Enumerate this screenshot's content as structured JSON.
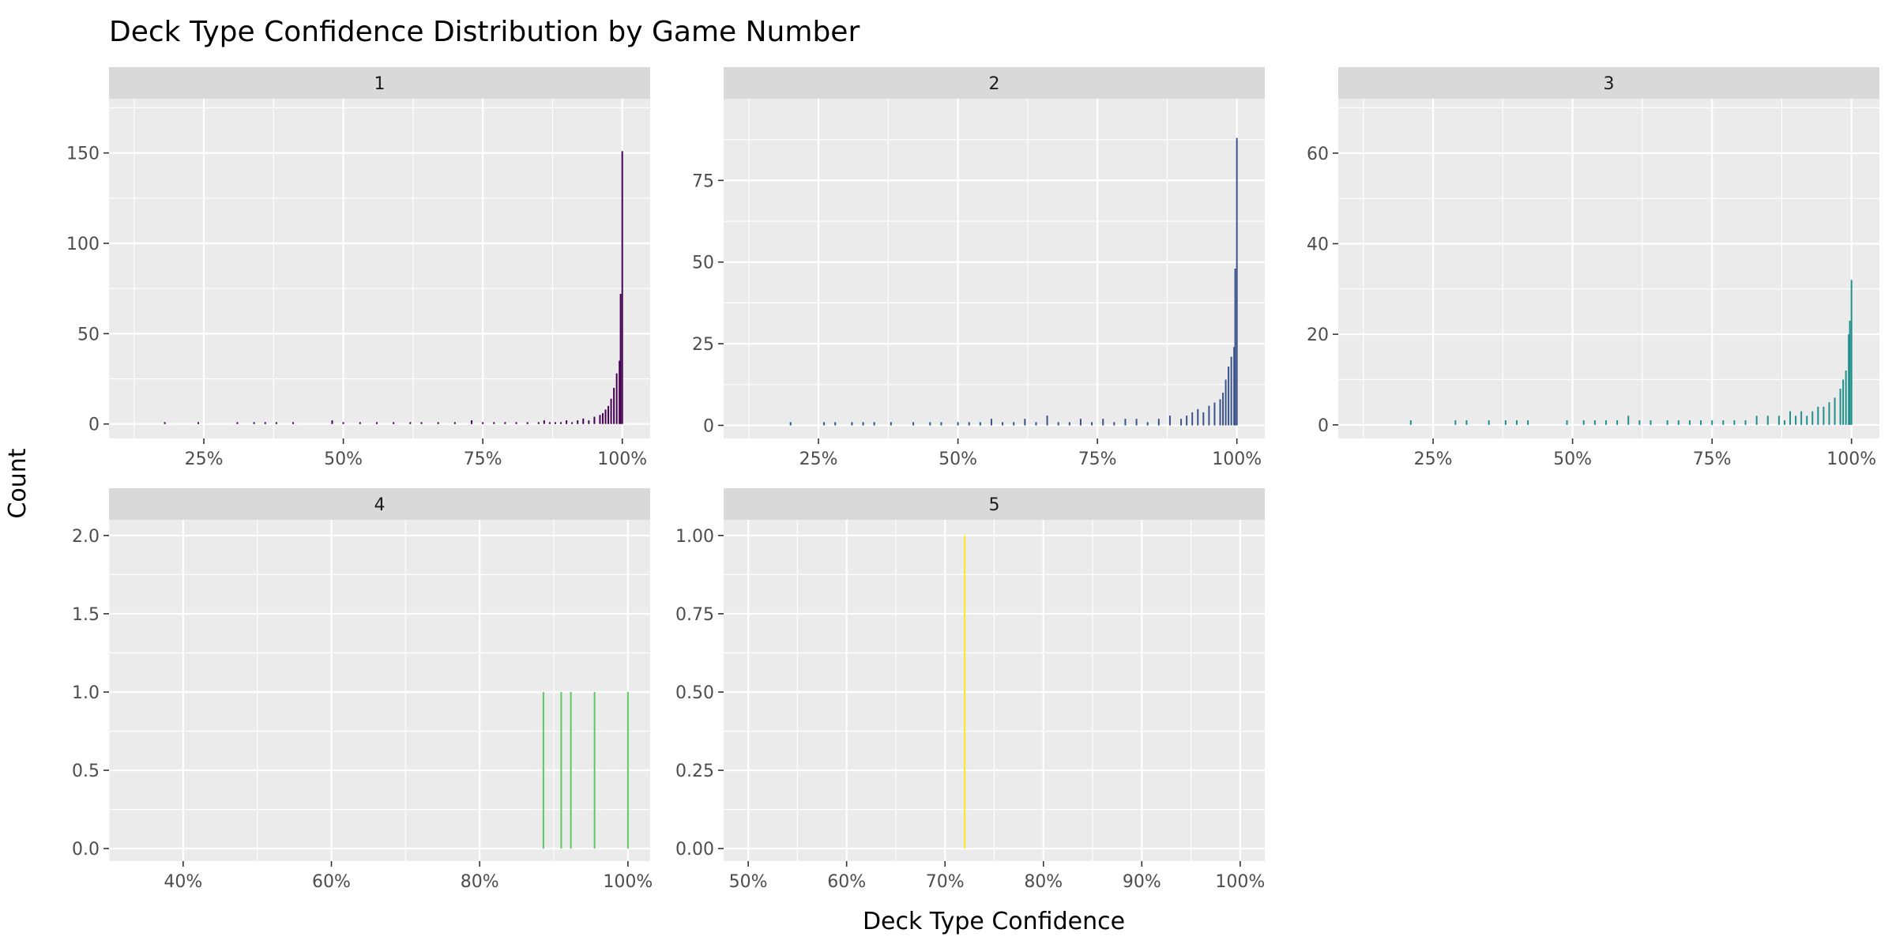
{
  "chart_data": {
    "type": "bar",
    "title": "Deck Type Confidence Distribution by Game Number",
    "xlabel": "Deck Type Confidence",
    "ylabel": "Count",
    "grid": true,
    "legend": "none",
    "facets": [
      {
        "label": "1",
        "color": "#440154",
        "xlim": [
          0.08,
          1.05
        ],
        "ylim": [
          -8,
          180
        ],
        "x_ticks": [
          0.25,
          0.5,
          0.75,
          1.0
        ],
        "x_tick_labels": [
          "25%",
          "50%",
          "75%",
          "100%"
        ],
        "y_ticks": [
          0,
          50,
          100,
          150
        ],
        "y_tick_labels": [
          "0",
          "50",
          "100",
          "150"
        ],
        "bars": [
          [
            0.18,
            1
          ],
          [
            0.24,
            1
          ],
          [
            0.31,
            1
          ],
          [
            0.34,
            1
          ],
          [
            0.36,
            1
          ],
          [
            0.38,
            1
          ],
          [
            0.41,
            1
          ],
          [
            0.48,
            2
          ],
          [
            0.5,
            1
          ],
          [
            0.53,
            1
          ],
          [
            0.56,
            1
          ],
          [
            0.59,
            1
          ],
          [
            0.62,
            1
          ],
          [
            0.64,
            1
          ],
          [
            0.67,
            1
          ],
          [
            0.7,
            1
          ],
          [
            0.73,
            2
          ],
          [
            0.75,
            1
          ],
          [
            0.77,
            1
          ],
          [
            0.79,
            1
          ],
          [
            0.81,
            1
          ],
          [
            0.83,
            1
          ],
          [
            0.85,
            1
          ],
          [
            0.86,
            2
          ],
          [
            0.87,
            1
          ],
          [
            0.88,
            1
          ],
          [
            0.89,
            1
          ],
          [
            0.9,
            2
          ],
          [
            0.91,
            1
          ],
          [
            0.92,
            2
          ],
          [
            0.93,
            3
          ],
          [
            0.94,
            2
          ],
          [
            0.95,
            4
          ],
          [
            0.96,
            5
          ],
          [
            0.965,
            6
          ],
          [
            0.97,
            8
          ],
          [
            0.975,
            10
          ],
          [
            0.98,
            14
          ],
          [
            0.985,
            20
          ],
          [
            0.99,
            28
          ],
          [
            0.995,
            35
          ],
          [
            0.997,
            72
          ],
          [
            1.0,
            151
          ]
        ]
      },
      {
        "label": "2",
        "color": "#3b528b",
        "xlim": [
          0.08,
          1.05
        ],
        "ylim": [
          -4,
          100
        ],
        "x_ticks": [
          0.25,
          0.5,
          0.75,
          1.0
        ],
        "x_tick_labels": [
          "25%",
          "50%",
          "75%",
          "100%"
        ],
        "y_ticks": [
          0,
          25,
          50,
          75
        ],
        "y_tick_labels": [
          "0",
          "25",
          "50",
          "75"
        ],
        "bars": [
          [
            0.2,
            1
          ],
          [
            0.26,
            1
          ],
          [
            0.28,
            1
          ],
          [
            0.31,
            1
          ],
          [
            0.33,
            1
          ],
          [
            0.35,
            1
          ],
          [
            0.38,
            1
          ],
          [
            0.42,
            1
          ],
          [
            0.45,
            1
          ],
          [
            0.47,
            1
          ],
          [
            0.5,
            1
          ],
          [
            0.52,
            1
          ],
          [
            0.54,
            1
          ],
          [
            0.56,
            2
          ],
          [
            0.58,
            1
          ],
          [
            0.6,
            1
          ],
          [
            0.62,
            2
          ],
          [
            0.64,
            1
          ],
          [
            0.66,
            3
          ],
          [
            0.68,
            1
          ],
          [
            0.7,
            1
          ],
          [
            0.72,
            2
          ],
          [
            0.74,
            1
          ],
          [
            0.76,
            2
          ],
          [
            0.78,
            1
          ],
          [
            0.8,
            2
          ],
          [
            0.82,
            2
          ],
          [
            0.84,
            1
          ],
          [
            0.86,
            2
          ],
          [
            0.88,
            3
          ],
          [
            0.9,
            2
          ],
          [
            0.91,
            3
          ],
          [
            0.92,
            4
          ],
          [
            0.93,
            5
          ],
          [
            0.94,
            4
          ],
          [
            0.95,
            6
          ],
          [
            0.96,
            7
          ],
          [
            0.97,
            8
          ],
          [
            0.975,
            10
          ],
          [
            0.98,
            14
          ],
          [
            0.985,
            18
          ],
          [
            0.99,
            21
          ],
          [
            0.995,
            24
          ],
          [
            0.997,
            48
          ],
          [
            1.0,
            88
          ]
        ]
      },
      {
        "label": "3",
        "color": "#21908c",
        "xlim": [
          0.08,
          1.05
        ],
        "ylim": [
          -3,
          72
        ],
        "x_ticks": [
          0.25,
          0.5,
          0.75,
          1.0
        ],
        "x_tick_labels": [
          "25%",
          "50%",
          "75%",
          "100%"
        ],
        "y_ticks": [
          0,
          20,
          40,
          60
        ],
        "y_tick_labels": [
          "0",
          "20",
          "40",
          "60"
        ],
        "bars": [
          [
            0.21,
            1
          ],
          [
            0.29,
            1
          ],
          [
            0.31,
            1
          ],
          [
            0.35,
            1
          ],
          [
            0.38,
            1
          ],
          [
            0.4,
            1
          ],
          [
            0.42,
            1
          ],
          [
            0.49,
            1
          ],
          [
            0.52,
            1
          ],
          [
            0.54,
            1
          ],
          [
            0.56,
            1
          ],
          [
            0.58,
            1
          ],
          [
            0.6,
            2
          ],
          [
            0.62,
            1
          ],
          [
            0.64,
            1
          ],
          [
            0.67,
            1
          ],
          [
            0.69,
            1
          ],
          [
            0.71,
            1
          ],
          [
            0.73,
            1
          ],
          [
            0.75,
            1
          ],
          [
            0.77,
            1
          ],
          [
            0.79,
            1
          ],
          [
            0.81,
            1
          ],
          [
            0.83,
            2
          ],
          [
            0.85,
            2
          ],
          [
            0.87,
            2
          ],
          [
            0.88,
            1
          ],
          [
            0.89,
            3
          ],
          [
            0.9,
            2
          ],
          [
            0.91,
            3
          ],
          [
            0.92,
            2
          ],
          [
            0.93,
            3
          ],
          [
            0.94,
            4
          ],
          [
            0.95,
            4
          ],
          [
            0.96,
            5
          ],
          [
            0.97,
            6
          ],
          [
            0.98,
            8
          ],
          [
            0.985,
            10
          ],
          [
            0.99,
            12
          ],
          [
            0.995,
            20
          ],
          [
            0.997,
            23
          ],
          [
            1.0,
            32
          ]
        ]
      },
      {
        "label": "4",
        "color": "#5ec962",
        "xlim": [
          0.3,
          1.03
        ],
        "ylim": [
          -0.08,
          2.1
        ],
        "x_ticks": [
          0.4,
          0.6,
          0.8,
          1.0
        ],
        "x_tick_labels": [
          "40%",
          "60%",
          "80%",
          "100%"
        ],
        "y_ticks": [
          0,
          0.5,
          1.0,
          1.5,
          2.0
        ],
        "y_tick_labels": [
          "0.0",
          "0.5",
          "1.0",
          "1.5",
          "2.0"
        ],
        "bars": [
          [
            0.886,
            1
          ],
          [
            0.91,
            1
          ],
          [
            0.923,
            1
          ],
          [
            0.955,
            1
          ],
          [
            1.0,
            1
          ]
        ]
      },
      {
        "label": "5",
        "color": "#fde725",
        "xlim": [
          0.475,
          1.025
        ],
        "ylim": [
          -0.04,
          1.05
        ],
        "x_ticks": [
          0.5,
          0.6,
          0.7,
          0.8,
          0.9,
          1.0
        ],
        "x_tick_labels": [
          "50%",
          "60%",
          "70%",
          "80%",
          "90%",
          "100%"
        ],
        "y_ticks": [
          0,
          0.25,
          0.5,
          0.75,
          1.0
        ],
        "y_tick_labels": [
          "0.00",
          "0.25",
          "0.50",
          "0.75",
          "1.00"
        ],
        "bars": [
          [
            0.72,
            1
          ]
        ]
      }
    ]
  }
}
